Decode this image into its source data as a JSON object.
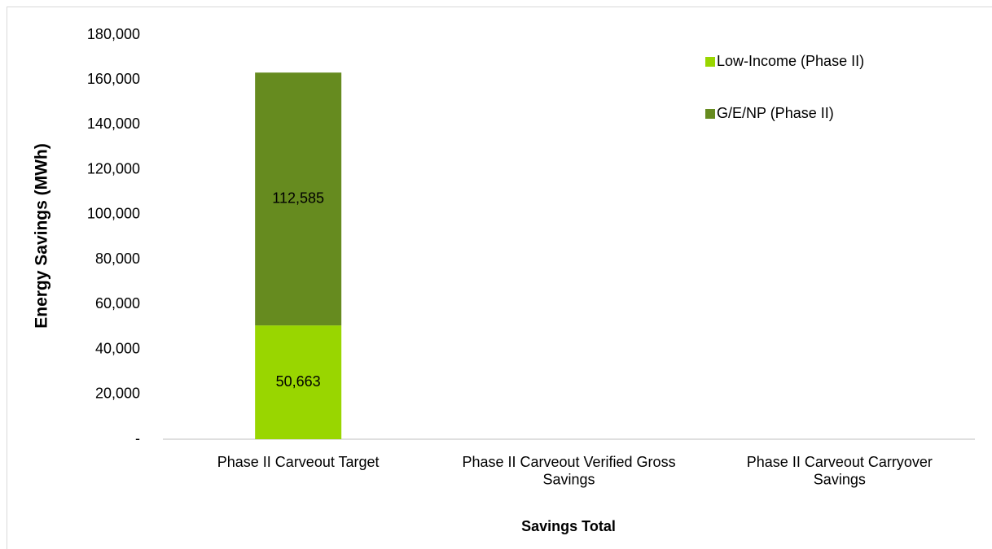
{
  "chart_data": {
    "type": "stacked_bar",
    "x_label": "Savings Total",
    "y_label": "Energy Savings (MWh)",
    "categories": [
      "Phase II Carveout Target",
      "Phase II Carveout Verified Gross Savings",
      "Phase II Carveout Carryover Savings"
    ],
    "series": [
      {
        "name": "Low-Income (Phase II)",
        "color": "#99d600",
        "values": [
          50663,
          null,
          null
        ],
        "value_labels": [
          "50,663",
          null,
          null
        ]
      },
      {
        "name": "G/E/NP (Phase II)",
        "color": "#668b1f",
        "values": [
          112585,
          null,
          null
        ],
        "value_labels": [
          "112,585",
          null,
          null
        ]
      }
    ],
    "ylim": [
      0,
      180000
    ],
    "yticks": [
      {
        "value": 0,
        "label": "-"
      },
      {
        "value": 20000,
        "label": "20,000"
      },
      {
        "value": 40000,
        "label": "40,000"
      },
      {
        "value": 60000,
        "label": "60,000"
      },
      {
        "value": 80000,
        "label": "80,000"
      },
      {
        "value": 100000,
        "label": "100,000"
      },
      {
        "value": 120000,
        "label": "120,000"
      },
      {
        "value": 140000,
        "label": "140,000"
      },
      {
        "value": 160000,
        "label": "160,000"
      },
      {
        "value": 180000,
        "label": "180,000"
      }
    ],
    "grid": false,
    "legend": "top-right"
  }
}
